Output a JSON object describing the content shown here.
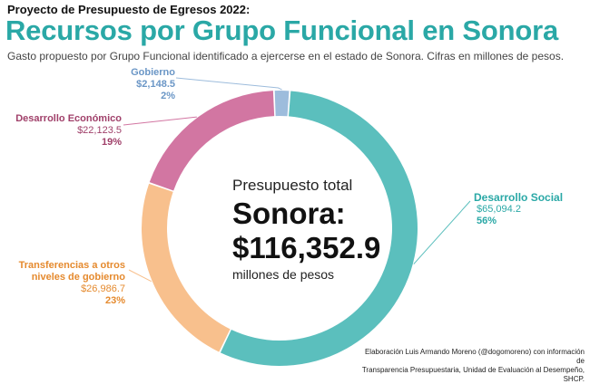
{
  "header": {
    "kicker": "Proyecto de Presupuesto de Egresos 2022:",
    "title": "Recursos por Grupo Funcional en Sonora",
    "subtitle": "Gasto propuesto por Grupo Funcional identificado a ejercerse en el estado de Sonora. Cifras en millones de pesos."
  },
  "center": {
    "label": "Presupuesto total",
    "name": "Sonora:",
    "value": "$116,352.9",
    "unit": "millones de pesos"
  },
  "footer": {
    "credit_line1": "Elaboración Luis Armando Moreno (@dogomoreno) con información de",
    "credit_line2": "Transparencia Presupuestaria, Unidad de Evaluación al Desempeño, SHCP."
  },
  "chart_data": {
    "type": "pie",
    "title": "Recursos por Grupo Funcional en Sonora",
    "total": 116352.9,
    "slices": [
      {
        "name": "Desarrollo Social",
        "value": 65094.2,
        "value_label": "$65,094.2",
        "percent_label": "56%",
        "color": "#5bbfbd"
      },
      {
        "name": "Transferencias a otros niveles de gobierno",
        "name_line1": "Transferencias a otros",
        "name_line2": "niveles de gobierno",
        "value": 26986.7,
        "value_label": "$26,986.7",
        "percent_label": "23%",
        "color": "#f8c08d"
      },
      {
        "name": "Desarrollo Económico",
        "value": 22123.5,
        "value_label": "$22,123.5",
        "percent_label": "19%",
        "color": "#d276a2"
      },
      {
        "name": "Gobierno",
        "value": 2148.5,
        "value_label": "$2,148.5",
        "percent_label": "2%",
        "color": "#9dbcdc"
      }
    ]
  }
}
